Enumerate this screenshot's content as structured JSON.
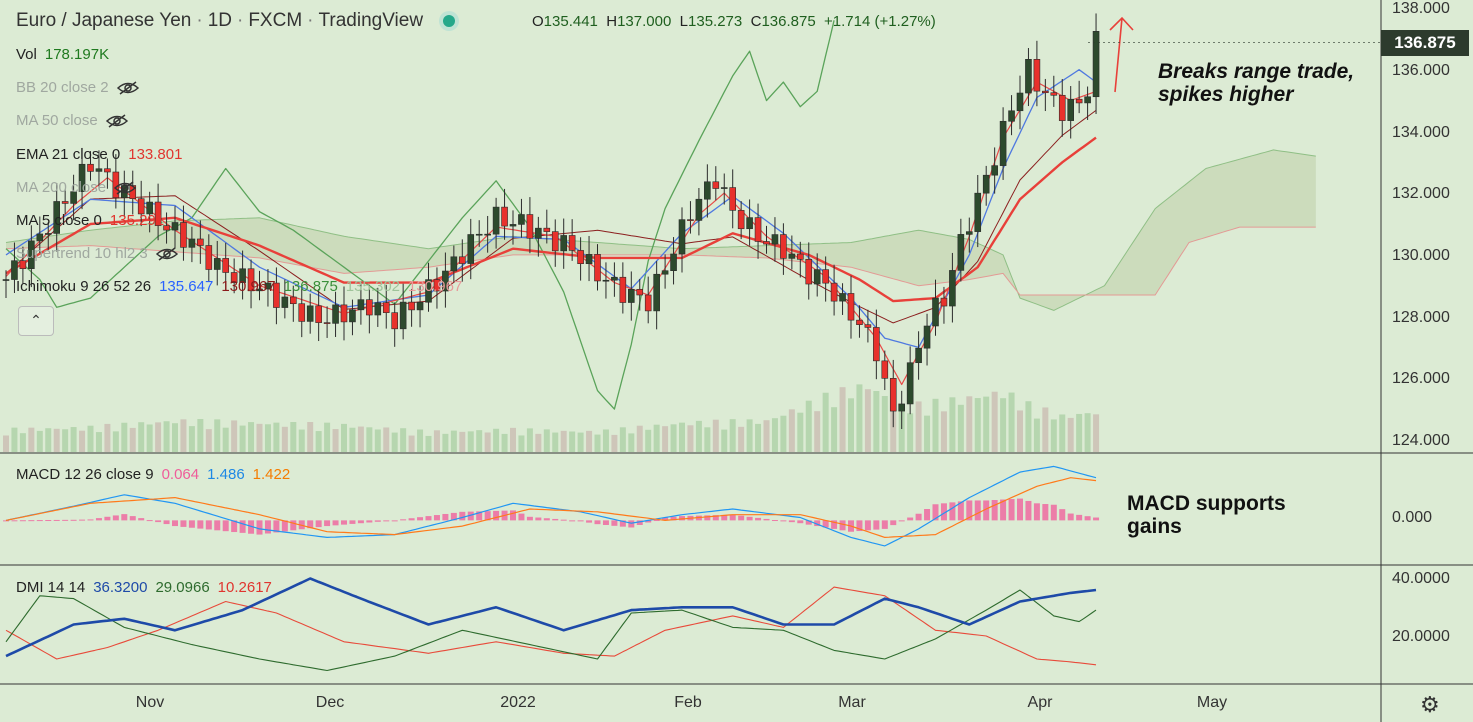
{
  "header": {
    "title_parts": [
      "Euro / Japanese Yen",
      "1D",
      "FXCM",
      "TradingView"
    ],
    "open_label": "O",
    "open": "135.441",
    "high_label": "H",
    "high": "137.000",
    "low_label": "L",
    "low": "135.273",
    "close_label": "C",
    "close": "136.875",
    "change": "+1.714 (+1.27%)"
  },
  "legend": {
    "vol_label": "Vol",
    "vol_value": "178.197K",
    "bb": "BB 20 close 2",
    "ma50": "MA 50 close",
    "ema21_label": "EMA 21 close 0",
    "ema21_value": "133.801",
    "ma200": "MA 200 close",
    "ma5_label": "MA 5 close 0",
    "ma5_value": "135.291",
    "supertrend": "Supertrend 10 hl2 3",
    "ichimoku_label": "Ichimoku 9 26 52 26",
    "ichimoku_values": [
      "135.647",
      "130.967",
      "136.875",
      "135.302",
      "130.967"
    ],
    "macd_label": "MACD 12 26 close 9",
    "macd_values": [
      "0.064",
      "1.486",
      "1.422"
    ],
    "dmi_label": "DMI 14 14",
    "dmi_values": [
      "36.3200",
      "29.0966",
      "10.2617"
    ]
  },
  "annotations": {
    "price_note": [
      "Breaks range trade,",
      "spikes higher"
    ],
    "macd_note": [
      "MACD supports",
      "gains"
    ]
  },
  "last_price": "136.875",
  "y_ticks_price": [
    "138.000",
    "136.000",
    "134.000",
    "132.000",
    "130.000",
    "128.000",
    "126.000",
    "124.000"
  ],
  "y_ticks_macd": [
    "0.000"
  ],
  "y_ticks_dmi": [
    "40.0000",
    "20.0000"
  ],
  "x_ticks": [
    "Nov",
    "Dec",
    "2022",
    "Feb",
    "Mar",
    "Apr",
    "May"
  ],
  "colors": {
    "background": "#dcebd4",
    "up": "#2d4a2d",
    "down": "#e8312c",
    "ema21": "#e8403a",
    "ma5": "#e84a47",
    "bb_basis": "#4f79e0",
    "chikou": "#5aa35a",
    "kumo": "#b8c9a0",
    "macd": "#2196f3",
    "signal": "#ff7a1a",
    "hist": "#ef6aa0",
    "adx": "#1e4aa8",
    "di_plus": "#2e6b2e",
    "di_minus": "#e84a3a"
  },
  "chart_data": {
    "type": "candlestick",
    "symbol": "EURJPY",
    "timeframe": "1D",
    "ylim": [
      123.5,
      138.3
    ],
    "price_path": [
      [
        0,
        129.2
      ],
      [
        4,
        130.6
      ],
      [
        8,
        132.2
      ],
      [
        10,
        133.0
      ],
      [
        13,
        132.2
      ],
      [
        16,
        131.6
      ],
      [
        19,
        130.9
      ],
      [
        22,
        130.4
      ],
      [
        25,
        129.6
      ],
      [
        28,
        129.2
      ],
      [
        31,
        128.8
      ],
      [
        34,
        128.3
      ],
      [
        37,
        127.9
      ],
      [
        40,
        128.1
      ],
      [
        43,
        128.4
      ],
      [
        46,
        127.9
      ],
      [
        49,
        128.6
      ],
      [
        52,
        129.4
      ],
      [
        55,
        130.4
      ],
      [
        58,
        131.2
      ],
      [
        61,
        131.0
      ],
      [
        64,
        130.6
      ],
      [
        67,
        130.2
      ],
      [
        70,
        129.4
      ],
      [
        73,
        128.8
      ],
      [
        76,
        128.5
      ],
      [
        78,
        129.6
      ],
      [
        81,
        131.4
      ],
      [
        84,
        132.5
      ],
      [
        86,
        131.4
      ],
      [
        89,
        130.6
      ],
      [
        92,
        130.2
      ],
      [
        95,
        129.4
      ],
      [
        97,
        129.1
      ],
      [
        99,
        128.4
      ],
      [
        101,
        127.8
      ],
      [
        103,
        126.9
      ],
      [
        105,
        124.8
      ],
      [
        107,
        126.2
      ],
      [
        109,
        127.9
      ],
      [
        111,
        128.6
      ],
      [
        113,
        130.4
      ],
      [
        115,
        131.8
      ],
      [
        117,
        133.2
      ],
      [
        119,
        134.8
      ],
      [
        121,
        136.0
      ],
      [
        123,
        135.2
      ],
      [
        125,
        134.7
      ],
      [
        127,
        134.9
      ],
      [
        128,
        135.4
      ],
      [
        129,
        136.9
      ]
    ],
    "volume_path": [
      [
        0,
        1.0
      ],
      [
        10,
        1.1
      ],
      [
        20,
        1.4
      ],
      [
        30,
        1.3
      ],
      [
        40,
        1.2
      ],
      [
        50,
        0.9
      ],
      [
        60,
        1.0
      ],
      [
        70,
        0.9
      ],
      [
        80,
        1.3
      ],
      [
        90,
        1.4
      ],
      [
        98,
        2.6
      ],
      [
        102,
        3.0
      ],
      [
        106,
        2.0
      ],
      [
        112,
        2.3
      ],
      [
        118,
        2.7
      ],
      [
        121,
        2.1
      ],
      [
        125,
        1.6
      ],
      [
        129,
        1.8
      ]
    ],
    "ema21_path": [
      [
        0,
        129.4
      ],
      [
        10,
        131.0
      ],
      [
        20,
        131.2
      ],
      [
        30,
        130.3
      ],
      [
        40,
        129.1
      ],
      [
        50,
        129.1
      ],
      [
        60,
        130.2
      ],
      [
        70,
        129.9
      ],
      [
        80,
        129.9
      ],
      [
        86,
        130.7
      ],
      [
        95,
        130.0
      ],
      [
        101,
        129.2
      ],
      [
        105,
        128.5
      ],
      [
        110,
        128.6
      ],
      [
        115,
        129.6
      ],
      [
        120,
        131.8
      ],
      [
        125,
        133.0
      ],
      [
        129,
        133.8
      ]
    ],
    "ma5_path": [
      [
        0,
        129.3
      ],
      [
        8,
        131.6
      ],
      [
        12,
        132.5
      ],
      [
        20,
        130.8
      ],
      [
        30,
        129.0
      ],
      [
        40,
        128.1
      ],
      [
        50,
        128.8
      ],
      [
        58,
        130.9
      ],
      [
        65,
        130.6
      ],
      [
        72,
        129.1
      ],
      [
        76,
        128.7
      ],
      [
        82,
        131.3
      ],
      [
        85,
        132.0
      ],
      [
        90,
        130.6
      ],
      [
        97,
        129.3
      ],
      [
        103,
        127.3
      ],
      [
        106,
        125.8
      ],
      [
        110,
        127.8
      ],
      [
        114,
        130.6
      ],
      [
        118,
        133.8
      ],
      [
        122,
        135.6
      ],
      [
        126,
        135.0
      ],
      [
        129,
        135.3
      ]
    ],
    "bb_basis_path": [
      [
        0,
        130.0
      ],
      [
        10,
        131.8
      ],
      [
        20,
        131.6
      ],
      [
        30,
        129.6
      ],
      [
        40,
        128.3
      ],
      [
        50,
        128.7
      ],
      [
        58,
        130.6
      ],
      [
        66,
        130.5
      ],
      [
        74,
        128.9
      ],
      [
        80,
        130.7
      ],
      [
        86,
        131.9
      ],
      [
        92,
        130.7
      ],
      [
        100,
        128.6
      ],
      [
        104,
        127.3
      ],
      [
        108,
        127.0
      ],
      [
        114,
        130.0
      ],
      [
        118,
        132.8
      ],
      [
        122,
        135.1
      ],
      [
        127,
        136.0
      ],
      [
        129,
        135.6
      ]
    ],
    "chikou_path": [
      [
        0,
        130.2
      ],
      [
        4,
        129.2
      ],
      [
        6,
        128.3
      ],
      [
        10,
        128.6
      ],
      [
        14,
        129.6
      ],
      [
        18,
        130.6
      ],
      [
        22,
        131.2
      ],
      [
        26,
        132.8
      ],
      [
        30,
        131.4
      ],
      [
        34,
        130.8
      ],
      [
        38,
        130.0
      ],
      [
        42,
        129.2
      ],
      [
        46,
        128.4
      ],
      [
        50,
        129.8
      ],
      [
        54,
        131.2
      ],
      [
        58,
        132.4
      ],
      [
        62,
        130.9
      ],
      [
        66,
        128.8
      ],
      [
        70,
        125.6
      ],
      [
        72,
        125.0
      ],
      [
        74,
        127.1
      ],
      [
        76,
        129.8
      ],
      [
        78,
        131.5
      ],
      [
        82,
        133.7
      ],
      [
        86,
        135.8
      ],
      [
        88,
        136.6
      ],
      [
        90,
        135.0
      ],
      [
        92,
        135.6
      ],
      [
        94,
        134.8
      ],
      [
        96,
        135.3
      ],
      [
        98,
        137.6
      ]
    ],
    "cloud_a_path": [
      [
        0,
        130.4
      ],
      [
        10,
        130.8
      ],
      [
        20,
        131.1
      ],
      [
        30,
        131.2
      ],
      [
        40,
        130.6
      ],
      [
        50,
        130.2
      ],
      [
        60,
        130.6
      ],
      [
        70,
        130.4
      ],
      [
        80,
        130.2
      ],
      [
        90,
        130.3
      ],
      [
        100,
        130.4
      ],
      [
        108,
        130.8
      ],
      [
        114,
        130.5
      ],
      [
        118,
        130.0
      ],
      [
        120,
        128.6
      ],
      [
        124,
        128.2
      ],
      [
        130,
        129.0
      ],
      [
        136,
        131.5
      ],
      [
        142,
        132.8
      ],
      [
        150,
        133.4
      ],
      [
        155,
        133.2
      ]
    ],
    "cloud_b_path": [
      [
        0,
        130.2
      ],
      [
        10,
        130.3
      ],
      [
        20,
        130.1
      ],
      [
        30,
        129.9
      ],
      [
        40,
        129.4
      ],
      [
        50,
        129.6
      ],
      [
        60,
        130.0
      ],
      [
        70,
        130.0
      ],
      [
        80,
        130.0
      ],
      [
        90,
        129.9
      ],
      [
        100,
        129.6
      ],
      [
        108,
        129.0
      ],
      [
        114,
        129.2
      ],
      [
        118,
        129.4
      ],
      [
        120,
        128.7
      ],
      [
        130,
        128.7
      ],
      [
        136,
        128.7
      ],
      [
        140,
        130.4
      ],
      [
        146,
        130.9
      ],
      [
        155,
        130.9
      ]
    ],
    "macd_ylim": [
      -1.5,
      2.3
    ],
    "macd_path": [
      [
        0,
        0.0
      ],
      [
        8,
        0.5
      ],
      [
        14,
        0.9
      ],
      [
        20,
        0.6
      ],
      [
        30,
        -0.3
      ],
      [
        38,
        -0.6
      ],
      [
        46,
        -0.5
      ],
      [
        54,
        0.1
      ],
      [
        60,
        0.6
      ],
      [
        68,
        0.3
      ],
      [
        74,
        -0.1
      ],
      [
        80,
        0.2
      ],
      [
        86,
        0.4
      ],
      [
        94,
        0.1
      ],
      [
        100,
        -0.6
      ],
      [
        104,
        -0.9
      ],
      [
        108,
        -0.3
      ],
      [
        114,
        0.8
      ],
      [
        120,
        1.7
      ],
      [
        124,
        1.9
      ],
      [
        129,
        1.5
      ]
    ],
    "signal_path": [
      [
        0,
        0.0
      ],
      [
        10,
        0.6
      ],
      [
        20,
        0.8
      ],
      [
        30,
        0.2
      ],
      [
        38,
        -0.4
      ],
      [
        46,
        -0.5
      ],
      [
        54,
        -0.2
      ],
      [
        62,
        0.4
      ],
      [
        70,
        0.3
      ],
      [
        78,
        0.0
      ],
      [
        86,
        0.2
      ],
      [
        94,
        0.2
      ],
      [
        100,
        -0.2
      ],
      [
        104,
        -0.6
      ],
      [
        110,
        -0.5
      ],
      [
        116,
        0.4
      ],
      [
        122,
        1.2
      ],
      [
        126,
        1.5
      ],
      [
        129,
        1.4
      ]
    ],
    "dmi_ylim": [
      4,
      44
    ],
    "adx_path": [
      [
        0,
        13
      ],
      [
        8,
        24
      ],
      [
        14,
        26
      ],
      [
        20,
        22
      ],
      [
        28,
        29
      ],
      [
        36,
        40
      ],
      [
        42,
        33
      ],
      [
        50,
        24
      ],
      [
        58,
        30
      ],
      [
        66,
        22
      ],
      [
        74,
        29
      ],
      [
        80,
        30
      ],
      [
        86,
        30
      ],
      [
        92,
        24
      ],
      [
        98,
        24
      ],
      [
        104,
        33
      ],
      [
        108,
        30
      ],
      [
        114,
        24
      ],
      [
        120,
        32
      ],
      [
        126,
        35
      ],
      [
        129,
        36
      ]
    ],
    "di_plus_path": [
      [
        0,
        18
      ],
      [
        4,
        34
      ],
      [
        8,
        33
      ],
      [
        14,
        23
      ],
      [
        22,
        17
      ],
      [
        30,
        12
      ],
      [
        38,
        8
      ],
      [
        46,
        13
      ],
      [
        54,
        22
      ],
      [
        62,
        17
      ],
      [
        70,
        12
      ],
      [
        74,
        28
      ],
      [
        80,
        29
      ],
      [
        86,
        23
      ],
      [
        92,
        22
      ],
      [
        98,
        15
      ],
      [
        104,
        12
      ],
      [
        110,
        19
      ],
      [
        116,
        29
      ],
      [
        120,
        36
      ],
      [
        124,
        27
      ],
      [
        127,
        25
      ],
      [
        129,
        29
      ]
    ],
    "di_minus_path": [
      [
        0,
        22
      ],
      [
        6,
        12
      ],
      [
        12,
        16
      ],
      [
        18,
        22
      ],
      [
        26,
        32
      ],
      [
        32,
        28
      ],
      [
        40,
        18
      ],
      [
        50,
        14
      ],
      [
        58,
        18
      ],
      [
        66,
        14
      ],
      [
        72,
        13
      ],
      [
        78,
        22
      ],
      [
        86,
        27
      ],
      [
        92,
        23
      ],
      [
        98,
        37
      ],
      [
        104,
        34
      ],
      [
        110,
        22
      ],
      [
        116,
        20
      ],
      [
        122,
        12
      ],
      [
        126,
        11
      ],
      [
        129,
        10
      ]
    ]
  }
}
